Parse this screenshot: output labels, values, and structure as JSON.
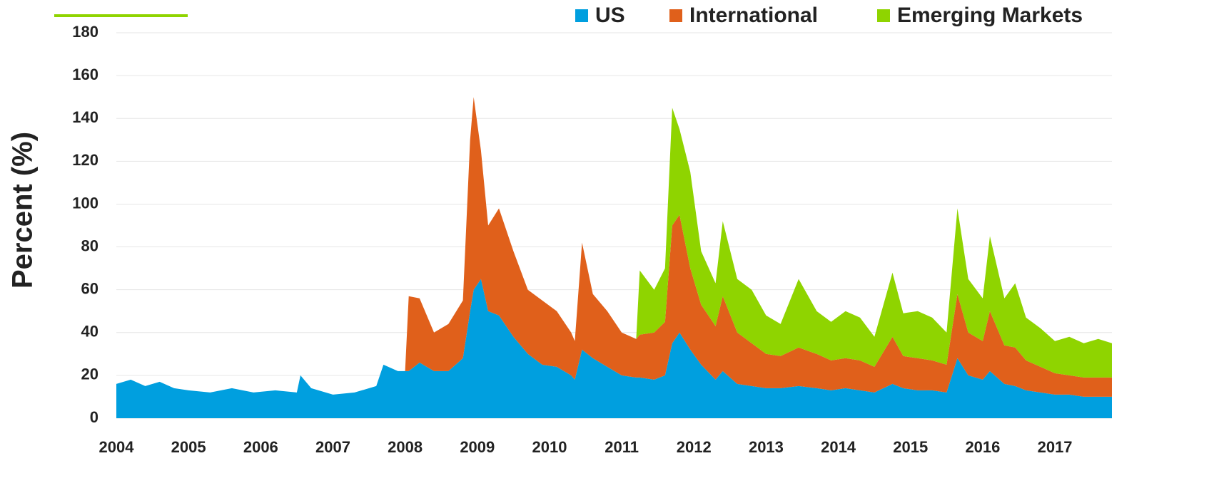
{
  "chart_data": {
    "type": "stacked_area",
    "ylabel": "Percent (%)",
    "x": [
      2004.0,
      2004.2,
      2004.4,
      2004.6,
      2004.8,
      2005.0,
      2005.3,
      2005.6,
      2005.9,
      2006.2,
      2006.5,
      2006.55,
      2006.7,
      2007.0,
      2007.3,
      2007.6,
      2007.7,
      2007.9,
      2008.0,
      2008.05,
      2008.2,
      2008.4,
      2008.6,
      2008.8,
      2008.9,
      2008.95,
      2009.05,
      2009.15,
      2009.3,
      2009.5,
      2009.7,
      2009.9,
      2010.1,
      2010.3,
      2010.35,
      2010.45,
      2010.6,
      2010.8,
      2011.0,
      2011.2,
      2011.25,
      2011.45,
      2011.6,
      2011.7,
      2011.8,
      2011.95,
      2012.1,
      2012.3,
      2012.4,
      2012.6,
      2012.8,
      2013.0,
      2013.2,
      2013.45,
      2013.7,
      2013.9,
      2014.1,
      2014.3,
      2014.5,
      2014.75,
      2014.9,
      2015.1,
      2015.3,
      2015.5,
      2015.65,
      2015.8,
      2016.0,
      2016.1,
      2016.3,
      2016.45,
      2016.6,
      2016.8,
      2017.0,
      2017.2,
      2017.4,
      2017.6,
      2017.79
    ],
    "series": [
      {
        "name": "US",
        "color": "#009fdf",
        "values": [
          16,
          18,
          15,
          17,
          14,
          13,
          12,
          14,
          12,
          13,
          12,
          20,
          14,
          11,
          12,
          15,
          25,
          22,
          22,
          22,
          26,
          22,
          22,
          28,
          50,
          60,
          65,
          50,
          48,
          38,
          30,
          25,
          24,
          20,
          18,
          32,
          28,
          24,
          20,
          19,
          19,
          18,
          20,
          35,
          40,
          32,
          25,
          18,
          22,
          16,
          15,
          14,
          14,
          15,
          14,
          13,
          14,
          13,
          12,
          16,
          14,
          13,
          13,
          12,
          28,
          20,
          18,
          22,
          16,
          15,
          13,
          12,
          11,
          11,
          10,
          10,
          10
        ]
      },
      {
        "name": "International",
        "color": "#e0601b",
        "values": [
          0,
          0,
          0,
          0,
          0,
          0,
          0,
          0,
          0,
          0,
          0,
          0,
          0,
          0,
          0,
          0,
          0,
          0,
          0,
          35,
          30,
          18,
          22,
          27,
          80,
          90,
          60,
          40,
          50,
          40,
          30,
          30,
          26,
          20,
          18,
          50,
          30,
          26,
          20,
          18,
          20,
          22,
          25,
          55,
          55,
          38,
          28,
          25,
          35,
          24,
          20,
          16,
          15,
          18,
          16,
          14,
          14,
          14,
          12,
          22,
          15,
          15,
          14,
          13,
          30,
          20,
          18,
          28,
          18,
          18,
          14,
          12,
          10,
          9,
          9,
          9,
          9
        ]
      },
      {
        "name": "Emerging Markets",
        "color": "#8fd400",
        "values": [
          0,
          0,
          0,
          0,
          0,
          0,
          0,
          0,
          0,
          0,
          0,
          0,
          0,
          0,
          0,
          0,
          0,
          0,
          0,
          0,
          0,
          0,
          0,
          0,
          0,
          0,
          0,
          0,
          0,
          0,
          0,
          0,
          0,
          0,
          0,
          0,
          0,
          0,
          0,
          0,
          30,
          20,
          25,
          55,
          40,
          45,
          25,
          20,
          35,
          25,
          25,
          18,
          15,
          32,
          20,
          18,
          22,
          20,
          14,
          30,
          20,
          22,
          20,
          15,
          40,
          25,
          20,
          35,
          22,
          30,
          20,
          18,
          15,
          18,
          16,
          18,
          16
        ]
      }
    ],
    "xlim": [
      2004,
      2017.79
    ],
    "xticks": [
      2004,
      2005,
      2006,
      2007,
      2008,
      2009,
      2010,
      2011,
      2012,
      2013,
      2014,
      2015,
      2016,
      2017
    ],
    "ylim": [
      0,
      180
    ],
    "yticks": [
      0,
      20,
      40,
      60,
      80,
      100,
      120,
      140,
      160,
      180
    ],
    "grid": true,
    "legend": "top-right"
  }
}
